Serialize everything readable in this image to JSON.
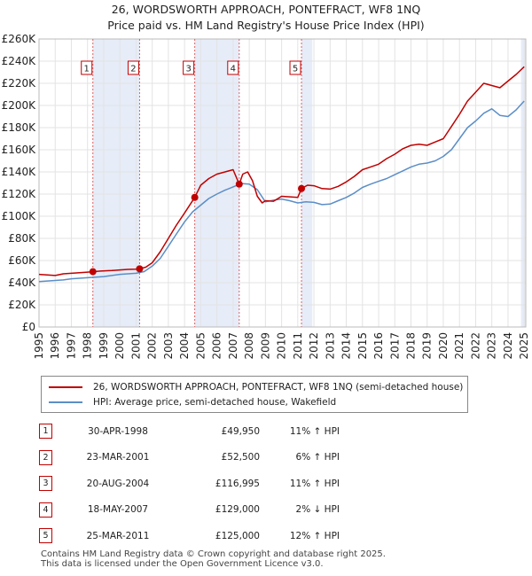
{
  "title_line1": "26, WORDSWORTH APPROACH, PONTEFRACT, WF8 1NQ",
  "title_line2": "Price paid vs. HM Land Registry's House Price Index (HPI)",
  "chart_data": {
    "type": "line",
    "title": "26, WORDSWORTH APPROACH, PONTEFRACT, WF8 1NQ — Price paid vs. HM Land Registry's House Price Index (HPI)",
    "xlim": [
      1995,
      2025.1
    ],
    "ylim": [
      0,
      260000
    ],
    "x_ticks": [
      1995,
      1996,
      1997,
      1998,
      1999,
      2000,
      2001,
      2002,
      2003,
      2004,
      2005,
      2006,
      2007,
      2008,
      2009,
      2010,
      2011,
      2012,
      2013,
      2014,
      2015,
      2016,
      2017,
      2018,
      2019,
      2020,
      2021,
      2022,
      2023,
      2024,
      2025
    ],
    "y_ticks": [
      0,
      20000,
      40000,
      60000,
      80000,
      100000,
      120000,
      140000,
      160000,
      180000,
      200000,
      220000,
      240000,
      260000
    ],
    "y_tick_labels": [
      "£0",
      "£20K",
      "£40K",
      "£60K",
      "£80K",
      "£100K",
      "£120K",
      "£140K",
      "£160K",
      "£180K",
      "£200K",
      "£220K",
      "£240K",
      "£260K"
    ],
    "shaded_bands": [
      [
        1998.33,
        2001.22
      ],
      [
        2004.63,
        2007.38
      ],
      [
        2011.23,
        2011.9
      ],
      [
        2024.8,
        2025.1
      ]
    ],
    "series": [
      {
        "name": "26, WORDSWORTH APPROACH, PONTEFRACT, WF8 1NQ (semi-detached house)",
        "color": "#c00000",
        "x": [
          1995,
          1995.5,
          1996,
          1996.5,
          1997,
          1997.5,
          1998,
          1998.33,
          1998.8,
          1999.5,
          2000,
          2000.5,
          2001,
          2001.22,
          2001.6,
          2002,
          2002.5,
          2003,
          2003.5,
          2004,
          2004.63,
          2005,
          2005.5,
          2006,
          2006.5,
          2007,
          2007.38,
          2007.6,
          2007.9,
          2008.2,
          2008.5,
          2008.8,
          2009,
          2009.5,
          2010,
          2010.5,
          2011,
          2011.23,
          2011.6,
          2012,
          2012.5,
          2013,
          2013.5,
          2014,
          2014.5,
          2015,
          2015.5,
          2016,
          2016.5,
          2017,
          2017.5,
          2018,
          2018.5,
          2019,
          2019.5,
          2020,
          2020.5,
          2021,
          2021.5,
          2022,
          2022.5,
          2023,
          2023.5,
          2024,
          2024.5,
          2025
        ],
        "y": [
          47500,
          47000,
          46500,
          48000,
          48500,
          49000,
          49500,
          49950,
          50500,
          51000,
          51500,
          52000,
          52200,
          52500,
          54000,
          58000,
          68000,
          80000,
          92000,
          103000,
          116995,
          128000,
          134000,
          138000,
          140000,
          142000,
          129000,
          138000,
          140000,
          132000,
          118000,
          112000,
          114000,
          113500,
          118000,
          117500,
          117000,
          125000,
          128000,
          127500,
          125000,
          124500,
          127000,
          131000,
          136000,
          142000,
          144500,
          147000,
          152000,
          156000,
          161000,
          164000,
          165000,
          164000,
          167000,
          170000,
          181000,
          192000,
          204000,
          212000,
          220000,
          218000,
          216000,
          222000,
          228000,
          235000
        ]
      },
      {
        "name": "HPI: Average price, semi-detached house, Wakefield",
        "color": "#5b8ec7",
        "x": [
          1995,
          1995.5,
          1996,
          1996.5,
          1997,
          1997.5,
          1998,
          1998.5,
          1999,
          1999.5,
          2000,
          2000.5,
          2001,
          2001.5,
          2002,
          2002.5,
          2003,
          2003.5,
          2004,
          2004.5,
          2005,
          2005.5,
          2006,
          2006.5,
          2007,
          2007.5,
          2008,
          2008.5,
          2009,
          2009.5,
          2010,
          2010.5,
          2011,
          2011.5,
          2012,
          2012.5,
          2013,
          2013.5,
          2014,
          2014.5,
          2015,
          2015.5,
          2016,
          2016.5,
          2017,
          2017.5,
          2018,
          2018.5,
          2019,
          2019.5,
          2020,
          2020.5,
          2021,
          2021.5,
          2022,
          2022.5,
          2023,
          2023.5,
          2024,
          2024.5,
          2025
        ],
        "y": [
          41000,
          41500,
          42000,
          42500,
          43500,
          44000,
          44500,
          45000,
          45500,
          46500,
          47500,
          48000,
          48500,
          50000,
          55000,
          62000,
          73000,
          84000,
          95000,
          104000,
          110000,
          116000,
          120000,
          123500,
          126500,
          129500,
          129000,
          124000,
          113000,
          114500,
          115500,
          114000,
          112000,
          113000,
          112500,
          110500,
          111000,
          114000,
          117000,
          121000,
          126000,
          129000,
          131500,
          134000,
          137500,
          141000,
          144500,
          147000,
          148000,
          150000,
          154000,
          160000,
          170000,
          180000,
          186000,
          193000,
          197000,
          191000,
          190000,
          196000,
          204000
        ]
      }
    ],
    "sales": [
      {
        "label": "1",
        "x": 1998.33,
        "price": 49950
      },
      {
        "label": "2",
        "x": 2001.22,
        "price": 52500
      },
      {
        "label": "3",
        "x": 2004.63,
        "price": 116995
      },
      {
        "label": "4",
        "x": 2007.38,
        "price": 129000
      },
      {
        "label": "5",
        "x": 2011.23,
        "price": 125000
      }
    ]
  },
  "legend": {
    "property": "26, WORDSWORTH APPROACH, PONTEFRACT, WF8 1NQ (semi-detached house)",
    "hpi": "HPI: Average price, semi-detached house, Wakefield"
  },
  "sales_table": [
    {
      "label": "1",
      "date": "30-APR-1998",
      "price": "£49,950",
      "hpi": "11% ↑ HPI"
    },
    {
      "label": "2",
      "date": "23-MAR-2001",
      "price": "£52,500",
      "hpi": "6% ↑ HPI"
    },
    {
      "label": "3",
      "date": "20-AUG-2004",
      "price": "£116,995",
      "hpi": "11% ↑ HPI"
    },
    {
      "label": "4",
      "date": "18-MAY-2007",
      "price": "£129,000",
      "hpi": "2% ↓ HPI"
    },
    {
      "label": "5",
      "date": "25-MAR-2011",
      "price": "£125,000",
      "hpi": "12% ↑ HPI"
    }
  ],
  "footer_line1": "Contains HM Land Registry data © Crown copyright and database right 2025.",
  "footer_line2": "This data is licensed under the Open Government Licence v3.0."
}
